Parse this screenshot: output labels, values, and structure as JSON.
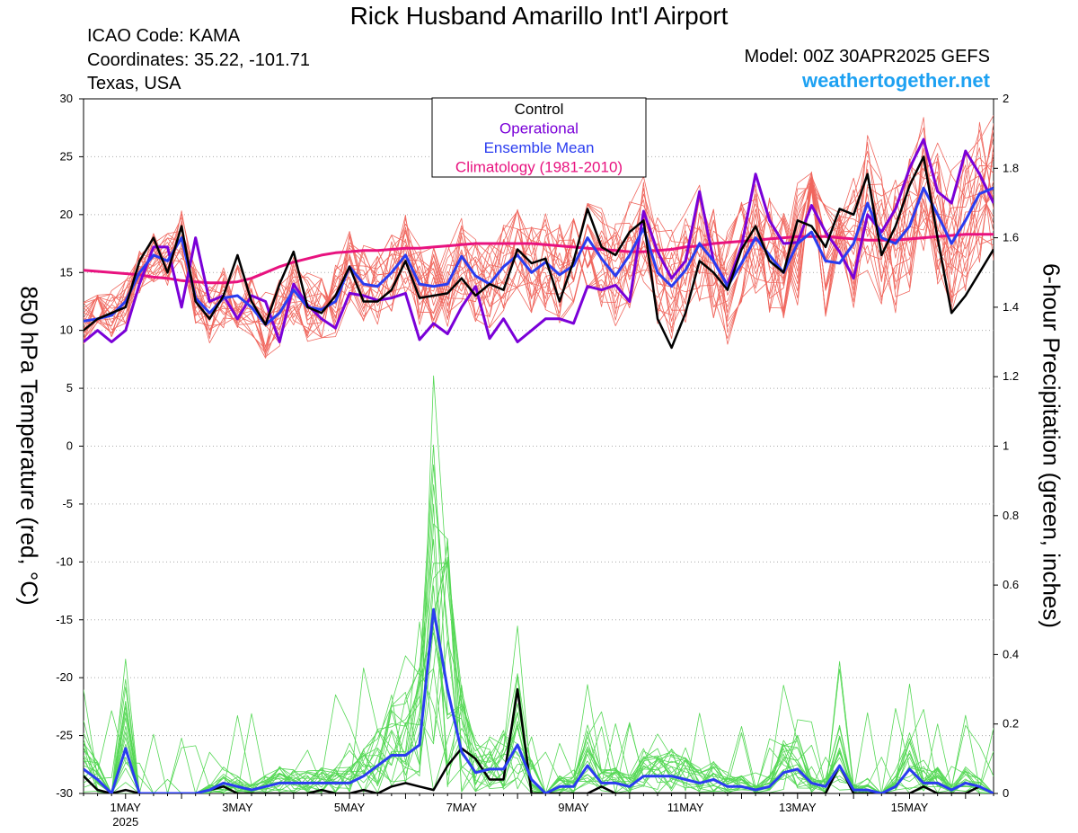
{
  "header": {
    "title": "Rick Husband Amarillo Int'l Airport",
    "icao": "ICAO Code: KAMA",
    "coords": "Coordinates: 35.22, -101.71",
    "region": "Texas, USA",
    "model": "Model: 00Z 30APR2025 GEFS",
    "brand": "weathertogether.net"
  },
  "chart_data": {
    "type": "line",
    "left_axis": {
      "label": "850 hPa Temperature (red, °C)",
      "ylim": [
        -30,
        30
      ],
      "ticks": [
        -30,
        -25,
        -20,
        -15,
        -10,
        -5,
        0,
        5,
        10,
        15,
        20,
        25,
        30
      ]
    },
    "right_axis": {
      "label": "6-hour Precipitation (green, inches)",
      "ylim": [
        0,
        2
      ],
      "ticks": [
        "0",
        "0.2",
        "0.4",
        "0.6",
        "0.8",
        "1",
        "1.2",
        "1.4",
        "1.6",
        "1.8",
        "2"
      ]
    },
    "x_axis": {
      "start": "30APR 06Z",
      "step_hours": 6,
      "points": 66,
      "ticks": [
        {
          "label": "1MAY",
          "sub": "2025",
          "pos": 3
        },
        {
          "label": "3MAY",
          "sub": "",
          "pos": 11
        },
        {
          "label": "5MAY",
          "sub": "",
          "pos": 19
        },
        {
          "label": "7MAY",
          "sub": "",
          "pos": 27
        },
        {
          "label": "9MAY",
          "sub": "",
          "pos": 35
        },
        {
          "label": "11MAY",
          "sub": "",
          "pos": 43
        },
        {
          "label": "13MAY",
          "sub": "",
          "pos": 51
        },
        {
          "label": "15MAY",
          "sub": "",
          "pos": 59
        }
      ]
    },
    "grid": "horizontal dotted",
    "legend": {
      "position": "top-center",
      "entries": [
        {
          "label": "Control",
          "color": "#000000"
        },
        {
          "label": "Operational",
          "color": "#7a00d8"
        },
        {
          "label": "Ensemble Mean",
          "color": "#2a3cf0"
        },
        {
          "label": "Climatology (1981-2010)",
          "color": "#e8127f"
        }
      ]
    },
    "colors": {
      "members_temp": "#f0675e",
      "members_precip": "#55d855",
      "control": "#000000",
      "operational": "#7a00d8",
      "mean": "#2a3cf0",
      "climatology": "#e8127f"
    },
    "temperature": {
      "control": [
        10,
        11,
        11.5,
        12,
        16,
        18,
        15,
        19,
        12.5,
        11,
        13,
        16.5,
        12.5,
        10.5,
        14,
        16.8,
        12,
        11.5,
        13,
        15.5,
        12.5,
        12.5,
        13.5,
        16,
        12.8,
        13,
        13.2,
        14.5,
        13,
        14,
        13.5,
        17,
        15.8,
        16.2,
        12.5,
        16,
        20.5,
        17.2,
        16.5,
        18.5,
        19.5,
        11,
        8.5,
        11.5,
        16,
        15,
        13.5,
        17,
        19,
        16,
        15,
        19.5,
        19,
        17.2,
        20.5,
        20,
        23.5,
        16.5,
        19,
        22.5,
        25,
        18,
        11.5,
        13,
        15,
        17
      ],
      "operational": [
        9,
        10,
        9,
        10,
        14,
        17.2,
        17.2,
        12,
        18,
        12.5,
        13,
        11,
        13,
        12.5,
        9,
        14,
        12.2,
        11,
        10.2,
        13.2,
        13,
        12.6,
        12.8,
        13.2,
        9.2,
        10.6,
        9.7,
        12,
        13.8,
        9.3,
        11,
        9,
        10,
        11,
        11,
        10.6,
        13.8,
        13.5,
        13.9,
        12.5,
        20.3,
        16.8,
        14.5,
        16,
        22,
        16,
        13.9,
        17.3,
        23.5,
        19.5,
        17.5,
        17.6,
        20.8,
        18.5,
        16.8,
        14.5,
        20,
        18.5,
        20.5,
        24,
        26.5,
        22,
        21,
        25.5,
        23.5,
        21
      ],
      "mean": [
        10.8,
        11,
        11.3,
        12.5,
        15,
        16.5,
        16,
        18,
        12.8,
        11.5,
        12.8,
        13,
        12,
        10.5,
        11.5,
        13.5,
        12,
        11.8,
        12.5,
        15.5,
        14,
        13.8,
        15,
        16.5,
        14,
        13.8,
        14,
        16.4,
        14.7,
        14,
        15.5,
        16.5,
        15,
        15.9,
        14.8,
        15.6,
        18,
        16.2,
        14.7,
        16.5,
        18.8,
        15,
        13.8,
        15.2,
        17.5,
        16,
        13.8,
        15.8,
        18,
        16.5,
        15,
        17.5,
        18.5,
        16,
        15.8,
        17.5,
        21,
        18,
        17.5,
        19,
        22.3,
        20,
        17.5,
        19.5,
        21.8,
        22.3
      ],
      "climatology": [
        15.2,
        15.1,
        15,
        14.9,
        14.8,
        14.6,
        14.5,
        14.3,
        14.2,
        14.1,
        14.1,
        14.2,
        14.5,
        15,
        15.5,
        15.9,
        16.2,
        16.5,
        16.7,
        16.8,
        16.9,
        16.9,
        17,
        17.1,
        17.1,
        17.2,
        17.3,
        17.4,
        17.5,
        17.5,
        17.5,
        17.5,
        17.5,
        17.4,
        17.3,
        17.2,
        17.1,
        17,
        16.9,
        16.8,
        16.8,
        16.9,
        17,
        17.2,
        17.3,
        17.5,
        17.6,
        17.7,
        17.8,
        17.9,
        18,
        18.1,
        18.1,
        18.1,
        18,
        17.9,
        17.8,
        17.8,
        17.8,
        17.9,
        18,
        18.1,
        18.2,
        18.3,
        18.3,
        18.3
      ]
    },
    "precipitation": {
      "control": [
        0.05,
        0.01,
        0,
        0.01,
        0,
        0,
        0,
        0,
        0,
        0.01,
        0.02,
        0,
        0,
        0,
        0,
        0,
        0,
        0.01,
        0,
        0,
        0.01,
        0,
        0.02,
        0.03,
        0.02,
        0.01,
        0.08,
        0.13,
        0.1,
        0.04,
        0.04,
        0.3,
        0,
        0,
        0,
        0,
        0,
        0.02,
        0,
        0,
        0,
        0,
        0,
        0,
        0,
        0,
        0,
        0,
        0,
        0,
        0,
        0,
        0,
        0,
        0.08,
        0,
        0,
        0,
        0,
        0,
        0.02,
        0,
        0,
        0,
        0.02,
        0
      ],
      "operational": [
        0,
        0,
        0,
        0,
        0,
        0,
        0,
        0,
        0,
        0,
        0,
        0,
        0,
        0,
        0,
        0,
        0,
        0,
        0,
        0,
        0,
        0,
        0,
        0,
        0,
        0,
        0,
        0,
        0,
        0,
        0,
        0,
        0,
        0,
        0,
        0,
        0,
        0,
        0,
        0,
        0,
        0,
        0,
        0,
        0,
        0,
        0,
        0,
        0,
        0,
        0,
        0,
        0,
        0,
        0,
        0,
        0,
        0,
        0,
        0,
        0,
        0,
        0,
        0,
        0,
        0
      ],
      "mean": [
        0.07,
        0.04,
        0,
        0.13,
        0,
        0,
        0,
        0,
        0,
        0.01,
        0.03,
        0.02,
        0.01,
        0.02,
        0.03,
        0.03,
        0.03,
        0.03,
        0.03,
        0.03,
        0.05,
        0.08,
        0.11,
        0.11,
        0.14,
        0.53,
        0.3,
        0.12,
        0.06,
        0.07,
        0.07,
        0.14,
        0.04,
        0,
        0.02,
        0.02,
        0.08,
        0.03,
        0.03,
        0.02,
        0.05,
        0.05,
        0.05,
        0.04,
        0.03,
        0.04,
        0.02,
        0.02,
        0.01,
        0.02,
        0.06,
        0.07,
        0.03,
        0.02,
        0.08,
        0.01,
        0.01,
        0,
        0.02,
        0.07,
        0.03,
        0.03,
        0.01,
        0.03,
        0.02,
        0
      ]
    }
  }
}
